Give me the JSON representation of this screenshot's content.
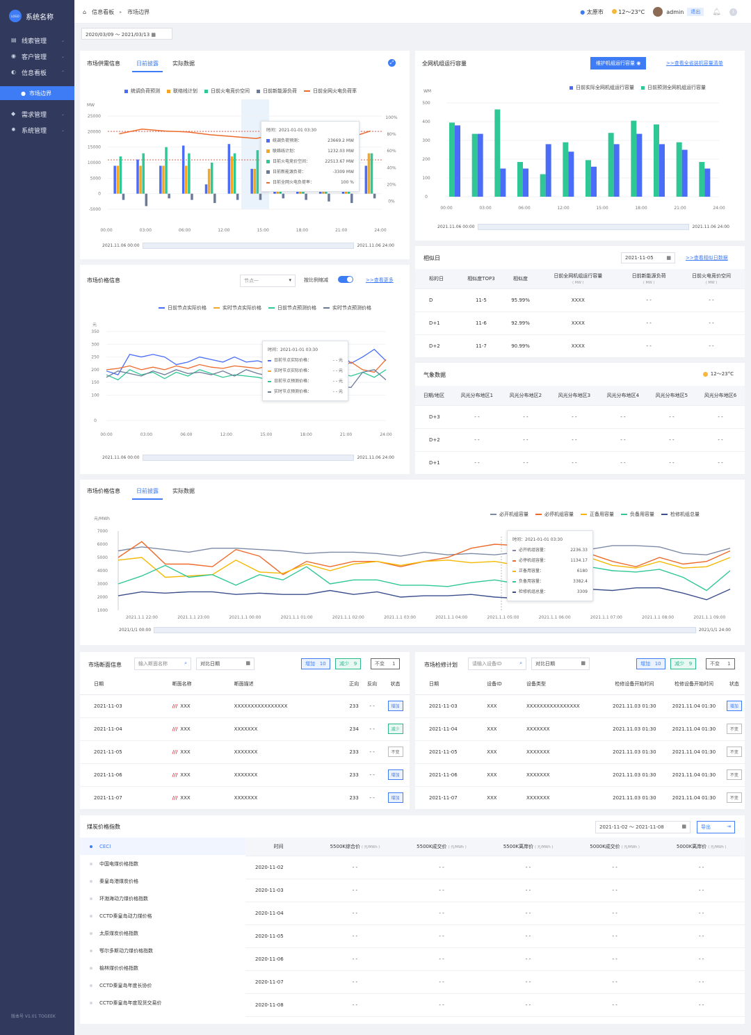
{
  "app": {
    "logo_text": "LOGO",
    "name": "系统名称",
    "version": "版本号 V1.01  TOGEEK"
  },
  "nav": [
    {
      "label": "线索管理"
    },
    {
      "label": "客户管理"
    },
    {
      "label": "信息看板"
    },
    {
      "label": "需求管理"
    },
    {
      "label": "系统管理"
    }
  ],
  "nav_sub": {
    "label": "市场边界"
  },
  "breadcrumb": {
    "root": "信息看板",
    "current": "市场边界"
  },
  "topbar": {
    "city": "太原市",
    "weather": "12～23°C",
    "user": "admin",
    "logout": "退出"
  },
  "date_range": "2020/03/09 ～ 2021/03/13",
  "supply": {
    "title": "市场供需信息",
    "tabs": [
      "日前披露",
      "实际数据"
    ],
    "legend": [
      "统调负荷预测",
      "联络线计划",
      "日前火电竞价空间",
      "日前新能源负荷",
      "日前全网火电负荷率"
    ],
    "y_unit": "MW",
    "y_ticks": [
      "25000",
      "20000",
      "15000",
      "10000",
      "5000",
      "0",
      "-5000"
    ],
    "y2_ticks": [
      "100%",
      "80%",
      "60%",
      "40%",
      "20%",
      "0%"
    ],
    "x_ticks": [
      "00:00",
      "03:00",
      "06:00",
      "12:00",
      "15:00",
      "18:00",
      "21:00",
      "24:00"
    ],
    "slider_start": "2021.11.06 00:00",
    "slider_end": "2021.11.06 24:00",
    "tooltip": {
      "time": "时间：2021-01-01 03:30",
      "rows": [
        {
          "k": "统调负荷预测：",
          "v": "23669.2  MW"
        },
        {
          "k": "联络线计划：",
          "v": "1232.03  MW"
        },
        {
          "k": "日前火电竞价空间：",
          "v": "22513.67 MW"
        },
        {
          "k": "日前新能源负荷：",
          "v": "-3309 MW"
        },
        {
          "k": "日前全网火电负荷率：",
          "v": "100  %"
        }
      ]
    }
  },
  "capacity": {
    "title": "全网机组运行容量",
    "button": "维护机组运行容量",
    "link": ">>查看全省装机容量清单",
    "legend": [
      "日前实际全网机组运行容量",
      "日前预测全网机组运行容量"
    ],
    "y_unit": "WM",
    "y_ticks": [
      "500",
      "400",
      "300",
      "200",
      "100",
      "0"
    ],
    "x_ticks": [
      "00:00",
      "03:00",
      "06:00",
      "12:00",
      "15:00",
      "18:00",
      "21:00",
      "24:00"
    ],
    "slider_start": "2021.11.06 00:00",
    "slider_end": "2021.11.06 24:00"
  },
  "price1": {
    "title": "市场价格信息",
    "node_select": "节点一",
    "scale_label": "按比例缩减",
    "link": ">>查看更多",
    "legend": [
      "日前节点实际价格",
      "实时节点实际价格",
      "日前节点预测价格",
      "实时节点预测价格"
    ],
    "y_unit": "元",
    "y_ticks": [
      "350",
      "300",
      "250",
      "200",
      "150",
      "100",
      "0"
    ],
    "x_ticks": [
      "00:00",
      "03:00",
      "06:00",
      "12:00",
      "15:00",
      "18:00",
      "21:00",
      "24:00"
    ],
    "slider_start": "2021.11.06 00:00",
    "slider_end": "2021.11.06 24:00",
    "tooltip": {
      "time": "时间：2021-01-01 03:30",
      "rows": [
        {
          "k": "日前节点实际价格：",
          "v": "- - 元"
        },
        {
          "k": "实时节点实际价格：",
          "v": "- - 元"
        },
        {
          "k": "日前节点预测价格：",
          "v": "- - 元"
        },
        {
          "k": "实时节点预测价格：",
          "v": "- - 元"
        }
      ]
    }
  },
  "similar": {
    "title": "相似日",
    "date": "2021-11-05",
    "link": ">>查看相似日数据",
    "headers": [
      "标的日",
      "相似度TOP3",
      "相似度",
      "日前全网机组运行容量",
      "日前新能源负荷",
      "日前火电竞价空间"
    ],
    "sub_unit": "( MW )",
    "rows": [
      [
        "D",
        "11-5",
        "95.99%",
        "XXXX",
        "- -",
        "- -"
      ],
      [
        "D+1",
        "11-6",
        "92.99%",
        "XXXX",
        "- -",
        "- -"
      ],
      [
        "D+2",
        "11-7",
        "90.99%",
        "XXXX",
        "- -",
        "- -"
      ]
    ]
  },
  "weather": {
    "title": "气象数据",
    "temp": "12～23°C",
    "headers": [
      "日期/地区",
      "风光分布地区1",
      "风光分布地区2",
      "风光分布地区3",
      "风光分布地区4",
      "风光分布地区5",
      "风光分布地区6"
    ],
    "rows": [
      [
        "D+3",
        "- -",
        "- -",
        "- -",
        "- -",
        "- -",
        "- -"
      ],
      [
        "D+2",
        "- -",
        "- -",
        "- -",
        "- -",
        "- -",
        "- -"
      ],
      [
        "D+1",
        "- -",
        "- -",
        "- -",
        "- -",
        "- -",
        "- -"
      ]
    ]
  },
  "price2": {
    "title": "市场价格信息",
    "tabs": [
      "日前披露",
      "实际数据"
    ],
    "legend": [
      "必开机组容量",
      "必停机组容量",
      "正备用容量",
      "负备用容量",
      "检修机组总量"
    ],
    "y_unit": "元/MWh",
    "y_ticks": [
      "7000",
      "6000",
      "5000",
      "4000",
      "3000",
      "2000",
      "1000"
    ],
    "x_ticks": [
      "2021.1.1 22:00",
      "2021.1.1 23:00",
      "2021.1.1 00:00",
      "2021.1.1 01:00",
      "2021.1.1 02:00",
      "2021.1.1 03:00",
      "2021.1.1 04:00",
      "2021.1.1 05:00",
      "2021.1.1 06:00",
      "2021.1.1 07:00",
      "2021.1.1 08:00",
      "2021.1.1 09:00"
    ],
    "slider_start": "2021/1/1 00:00",
    "slider_end": "2021/1/1 24:00",
    "tooltip": {
      "time": "时间：2021-01-01 03:30",
      "rows": [
        {
          "k": "必开机组容量：",
          "v": "2236.33"
        },
        {
          "k": "必停机组容量：",
          "v": "1134.17"
        },
        {
          "k": "正备用容量：",
          "v": "6180"
        },
        {
          "k": "负备用容量：",
          "v": "3382.4"
        },
        {
          "k": "检修机组总量：",
          "v": "3309"
        }
      ]
    }
  },
  "section": {
    "title": "市场断面信息",
    "search_placeholder": "输入断面名称",
    "date_placeholder": "对比日期",
    "tag_add": "增加",
    "tag_add_n": "10",
    "tag_red": "减少",
    "tag_red_n": "9",
    "tag_same": "不变",
    "tag_same_n": "1",
    "headers": [
      "日期",
      "断面名称",
      "断面描述",
      "正向",
      "反向",
      "状态"
    ],
    "rows": [
      [
        "2021-11-03",
        "XXX",
        "XXXXXXXXXXXXXXXX",
        "233",
        "- -",
        "增加"
      ],
      [
        "2021-11-04",
        "XXX",
        "XXXXXXX",
        "234",
        "- -",
        "减少"
      ],
      [
        "2021-11-05",
        "XXX",
        "XXXXXXX",
        "233",
        "- -",
        "不变"
      ],
      [
        "2021-11-06",
        "XXX",
        "XXXXXXX",
        "233",
        "- -",
        "增加"
      ],
      [
        "2021-11-07",
        "XXX",
        "XXXXXXX",
        "233",
        "- -",
        "增加"
      ]
    ]
  },
  "maint": {
    "title": "市场检修计划",
    "search_placeholder": "请输入设备ID",
    "date_placeholder": "对比日期",
    "tag_add": "增加",
    "tag_add_n": "10",
    "tag_red": "减少",
    "tag_red_n": "9",
    "tag_same": "不变",
    "tag_same_n": "1",
    "headers": [
      "日期",
      "设备ID",
      "设备类型",
      "检修设备开始时间",
      "检修设备开始时间",
      "状态"
    ],
    "rows": [
      [
        "2021-11-03",
        "XXX",
        "XXXXXXXXXXXXXXXX",
        "2021.11.03 01:30",
        "2021.11.04 01:30",
        "增加"
      ],
      [
        "2021-11-04",
        "XXX",
        "XXXXXXX",
        "2021.11.03 01:30",
        "2021.11.04 01:30",
        "不变"
      ],
      [
        "2021-11-05",
        "XXX",
        "XXXXXXX",
        "2021.11.03 01:30",
        "2021.11.04 01:30",
        "不变"
      ],
      [
        "2021-11-06",
        "XXX",
        "XXXXXXX",
        "2021.11.03 01:30",
        "2021.11.04 01:30",
        "不变"
      ],
      [
        "2021-11-07",
        "XXX",
        "XXXXXXX",
        "2021.11.03 01:30",
        "2021.11.04 01:30",
        "不变"
      ]
    ]
  },
  "coal": {
    "title": "煤炭价格指数",
    "date_range": "2021-11-02 ～ 2021-11-08",
    "export": "导出",
    "list": [
      "CECI",
      "中国电煤价格指数",
      "秦皇岛港煤炭价格",
      "环渤海动力煤价格指数",
      "CCTD秦皇岛动力煤价格",
      "太原煤炭价格指数",
      "鄂尔多斯动力煤价格指数",
      "榆林煤价价格指数",
      "CCTD秦皇岛年度长协价",
      "CCTD秦皇岛年度现货交易价"
    ],
    "headers": [
      "时间",
      "5500K综合价",
      "5500K成交价",
      "5500K离岸价",
      "5000K成交价",
      "5000K离岸价"
    ],
    "unit": "( 元/MWh )",
    "rows": [
      [
        "2020-11-02",
        "- -",
        "- -",
        "- -",
        "- -",
        "- -"
      ],
      [
        "2020-11-03",
        "- -",
        "- -",
        "- -",
        "- -",
        "- -"
      ],
      [
        "2020-11-04",
        "- -",
        "- -",
        "- -",
        "- -",
        "- -"
      ],
      [
        "2020-11-05",
        "- -",
        "- -",
        "- -",
        "- -",
        "- -"
      ],
      [
        "2020-11-06",
        "- -",
        "- -",
        "- -",
        "- -",
        "- -"
      ],
      [
        "2020-11-07",
        "- -",
        "- -",
        "- -",
        "- -",
        "- -"
      ],
      [
        "2020-11-08",
        "- -",
        "- -",
        "- -",
        "- -",
        "- -"
      ]
    ]
  },
  "colors": {
    "blue": "#4a6cf7",
    "orange": "#f5a623",
    "green": "#2ec795",
    "grey": "#6b7a99",
    "red": "#ee6a2a",
    "accent": "#3e7cf6"
  },
  "chart_data": [
    {
      "type": "bar",
      "title": "市场供需信息",
      "ylabel": "MW",
      "ylim": [
        -5000,
        25000
      ],
      "y2lim": [
        0,
        100
      ],
      "categories": [
        "1",
        "2",
        "3",
        "4",
        "5",
        "6",
        "7",
        "8",
        "9",
        "10",
        "11",
        "12"
      ],
      "series": [
        {
          "name": "统调负荷预测",
          "values": [
            9000,
            11000,
            9000,
            15500,
            3000,
            16000,
            8000,
            6000,
            8500,
            15000,
            3000,
            9000
          ]
        },
        {
          "name": "联络线计划",
          "values": [
            9000,
            9000,
            9000,
            9000,
            8000,
            12000,
            8000,
            8000,
            9000,
            9000,
            9000,
            13000
          ]
        },
        {
          "name": "日前火电竞价空间",
          "values": [
            12000,
            13000,
            15000,
            13000,
            10000,
            13000,
            14000,
            14000,
            12000,
            10000,
            14500,
            13000
          ]
        },
        {
          "name": "日前新能源负荷",
          "values": [
            -2000,
            -4000,
            -1500,
            -2000,
            -3000,
            -2000,
            -2000,
            -1500,
            -2000,
            -2500,
            -3000,
            -1500
          ]
        },
        {
          "name": "日前全网火电负荷率",
          "values": [
            75,
            80,
            78,
            77,
            74,
            72,
            70,
            75,
            78,
            76,
            70,
            78
          ]
        }
      ]
    },
    {
      "type": "bar",
      "title": "全网机组运行容量",
      "ylabel": "WM",
      "ylim": [
        0,
        500
      ],
      "categories": [
        "1",
        "2",
        "3",
        "4",
        "5",
        "6",
        "7",
        "8",
        "9",
        "10",
        "11",
        "12"
      ],
      "series": [
        {
          "name": "日前实际全网机组运行容量",
          "values": [
            380,
            335,
            150,
            150,
            280,
            240,
            160,
            280,
            335,
            280,
            250,
            150
          ]
        },
        {
          "name": "日前预测全网机组运行容量",
          "values": [
            395,
            335,
            465,
            185,
            120,
            290,
            195,
            340,
            405,
            385,
            290,
            185
          ]
        }
      ]
    },
    {
      "type": "line",
      "title": "市场价格信息",
      "ylabel": "元",
      "ylim": [
        0,
        350
      ],
      "x": [
        "0",
        "1",
        "2",
        "3",
        "4",
        "5",
        "6",
        "7",
        "8",
        "9",
        "10",
        "11",
        "12",
        "13",
        "14",
        "15",
        "16",
        "17",
        "18",
        "19",
        "20",
        "21",
        "22",
        "23",
        "24"
      ],
      "series": [
        {
          "name": "日前节点实际价格",
          "values": [
            195,
            180,
            260,
            250,
            260,
            250,
            220,
            230,
            250,
            240,
            230,
            250,
            230,
            235,
            220,
            230,
            225,
            240,
            230,
            240,
            270,
            225,
            250,
            280,
            235
          ]
        },
        {
          "name": "实时节点实际价格",
          "values": [
            200,
            205,
            215,
            200,
            210,
            200,
            215,
            205,
            220,
            210,
            205,
            215,
            210,
            205,
            215,
            210,
            220,
            230,
            210,
            220,
            205,
            230,
            200,
            190,
            240
          ]
        },
        {
          "name": "日前节点预测价格",
          "values": [
            180,
            160,
            200,
            180,
            190,
            165,
            190,
            175,
            200,
            185,
            170,
            180,
            175,
            170,
            160,
            175,
            165,
            180,
            170,
            165,
            185,
            175,
            190,
            170,
            200
          ]
        },
        {
          "name": "实时节点预测价格",
          "values": [
            170,
            195,
            185,
            175,
            195,
            180,
            200,
            185,
            190,
            180,
            195,
            175,
            200,
            185,
            175,
            165,
            180,
            160,
            160,
            170,
            135,
            130,
            190,
            200,
            160
          ]
        }
      ]
    },
    {
      "type": "line",
      "title": "市场价格信息",
      "ylabel": "元/MWh",
      "ylim": [
        1000,
        7000
      ],
      "x": [
        "0",
        "1",
        "2",
        "3",
        "4",
        "5",
        "6",
        "7",
        "8",
        "9",
        "10",
        "11",
        "12",
        "13",
        "14",
        "15",
        "16",
        "17",
        "18",
        "19",
        "20",
        "21",
        "22",
        "23",
        "24",
        "25",
        "26"
      ],
      "series": [
        {
          "name": "必开机组容量",
          "values": [
            5500,
            5800,
            5600,
            5400,
            5700,
            5700,
            5600,
            5500,
            5300,
            5400,
            5400,
            5300,
            5100,
            5400,
            5200,
            5300,
            5200,
            5400,
            5600,
            5700,
            5600,
            5900,
            5900,
            5800,
            5300,
            5200,
            5700
          ]
        },
        {
          "name": "必停机组容量",
          "values": [
            5000,
            6200,
            4500,
            4500,
            4300,
            5600,
            5100,
            3700,
            4700,
            4300,
            4700,
            4700,
            4300,
            4700,
            5000,
            5700,
            6000,
            5900,
            5300,
            5700,
            5300,
            4700,
            4300,
            5000,
            4500,
            4700,
            5500
          ]
        },
        {
          "name": "正备用容量",
          "values": [
            4800,
            5000,
            3500,
            3600,
            3700,
            4800,
            3900,
            3800,
            4500,
            4000,
            4500,
            4700,
            4400,
            4700,
            4800,
            4600,
            4700,
            4400,
            4400,
            4700,
            5000,
            4400,
            4200,
            4700,
            4200,
            4300,
            5000
          ]
        },
        {
          "name": "负备用容量",
          "values": [
            3000,
            3600,
            4400,
            3500,
            3700,
            2900,
            3700,
            3300,
            4300,
            3000,
            3300,
            3300,
            2900,
            2900,
            2800,
            3100,
            3300,
            3000,
            3700,
            4100,
            4300,
            4000,
            3900,
            4100,
            3500,
            2500,
            4000
          ]
        },
        {
          "name": "检修机组总量",
          "values": [
            2100,
            2400,
            2300,
            2400,
            2400,
            2200,
            2300,
            2200,
            2200,
            2500,
            2200,
            2400,
            2000,
            2100,
            2100,
            2200,
            2000,
            1900,
            2000,
            2300,
            2600,
            2500,
            2700,
            2700,
            2300,
            1800,
            2600
          ]
        }
      ]
    }
  ]
}
